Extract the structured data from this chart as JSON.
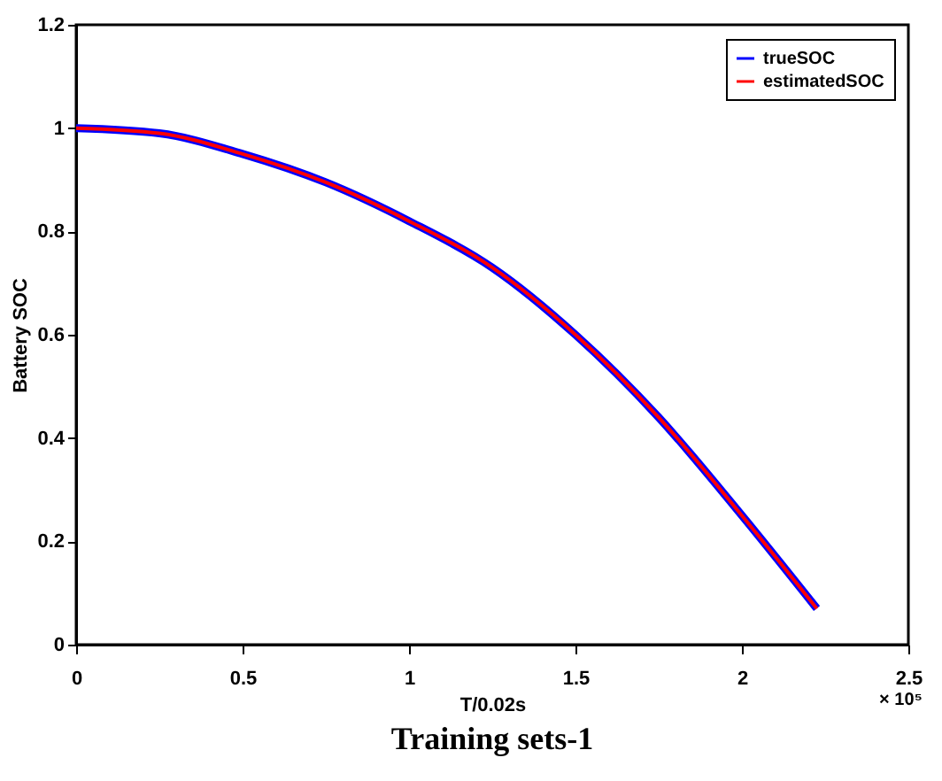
{
  "chart_data": {
    "type": "line",
    "title": "Training sets-1",
    "xlabel": "T/0.02s",
    "ylabel": "Battery SOC",
    "annotations": [
      "× 10⁵"
    ],
    "x": [
      0,
      0.25,
      0.5,
      0.75,
      1,
      1.25,
      1.5,
      1.75,
      2,
      2.225
    ],
    "series": [
      {
        "name": "trueSOC",
        "color": "#0000ff",
        "values": [
          1,
          0.99,
          0.95,
          0.895,
          0.82,
          0.73,
          0.6,
          0.44,
          0.25,
          0.07
        ]
      },
      {
        "name": "estimatedSOC",
        "color": "#ff0000",
        "values": [
          1,
          0.99,
          0.95,
          0.895,
          0.82,
          0.73,
          0.6,
          0.44,
          0.25,
          0.07
        ]
      }
    ],
    "xlim": [
      0,
      2.5
    ],
    "xticks": [
      0,
      0.5,
      1,
      1.5,
      2,
      2.5
    ],
    "ylim": [
      0,
      1.2
    ],
    "yticks": [
      0,
      0.2,
      0.4,
      0.6,
      0.8,
      1,
      1.2
    ],
    "grid": false,
    "legend": "top right",
    "marker": "none",
    "line_style": "solid"
  }
}
